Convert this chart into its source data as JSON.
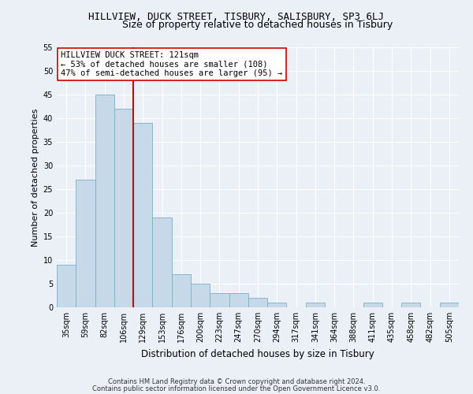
{
  "title1": "HILLVIEW, DUCK STREET, TISBURY, SALISBURY, SP3 6LJ",
  "title2": "Size of property relative to detached houses in Tisbury",
  "xlabel": "Distribution of detached houses by size in Tisbury",
  "ylabel": "Number of detached properties",
  "categories": [
    "35sqm",
    "59sqm",
    "82sqm",
    "106sqm",
    "129sqm",
    "153sqm",
    "176sqm",
    "200sqm",
    "223sqm",
    "247sqm",
    "270sqm",
    "294sqm",
    "317sqm",
    "341sqm",
    "364sqm",
    "388sqm",
    "411sqm",
    "435sqm",
    "458sqm",
    "482sqm",
    "505sqm"
  ],
  "values": [
    9,
    27,
    45,
    42,
    39,
    19,
    7,
    5,
    3,
    3,
    2,
    1,
    0,
    1,
    0,
    0,
    1,
    0,
    1,
    0,
    1
  ],
  "bar_color": "#c5d9e8",
  "bar_edge_color": "#7aafc8",
  "vline_x_index": 3.5,
  "vline_color": "#cc0000",
  "annotation_title": "HILLVIEW DUCK STREET: 121sqm",
  "annotation_line2": "← 53% of detached houses are smaller (108)",
  "annotation_line3": "47% of semi-detached houses are larger (95) →",
  "annotation_box_color": "#ffffff",
  "annotation_box_edge": "#cc0000",
  "ylim": [
    0,
    55
  ],
  "yticks": [
    0,
    5,
    10,
    15,
    20,
    25,
    30,
    35,
    40,
    45,
    50,
    55
  ],
  "footnote1": "Contains HM Land Registry data © Crown copyright and database right 2024.",
  "footnote2": "Contains public sector information licensed under the Open Government Licence v3.0.",
  "bg_color": "#eaf0f6",
  "plot_bg_color": "#eaf0f6",
  "grid_color": "#ffffff",
  "title1_fontsize": 9,
  "title2_fontsize": 9,
  "footnote_fontsize": 6,
  "ylabel_fontsize": 8,
  "xlabel_fontsize": 8.5,
  "tick_fontsize": 7,
  "annot_fontsize": 7.5
}
